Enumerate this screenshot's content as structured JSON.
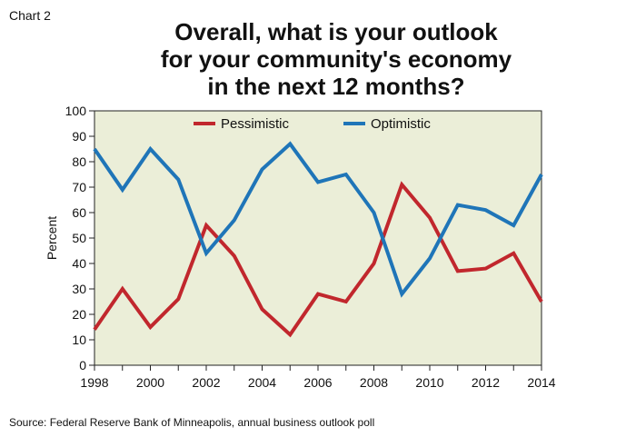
{
  "header": {
    "chart_number": "Chart 2",
    "title_line1": "Overall, what is your outlook",
    "title_line2": "for your community's economy",
    "title_line3": "in the next 12 months?"
  },
  "footer": {
    "source": "Source: Federal Reserve Bank of Minneapolis, annual business outlook poll"
  },
  "colors": {
    "plot_background": "#ebeed8",
    "pessimistic": "#c1272d",
    "optimistic": "#1f75b8"
  },
  "chart_data": {
    "type": "line",
    "title": "Overall, what is your outlook for your community's economy in the next 12 months?",
    "xlabel": "",
    "ylabel": "Percent",
    "x": [
      1998,
      1999,
      2000,
      2001,
      2002,
      2003,
      2004,
      2005,
      2006,
      2007,
      2008,
      2009,
      2010,
      2011,
      2012,
      2013,
      2014
    ],
    "xticks": [
      "1998",
      "2000",
      "2002",
      "2004",
      "2006",
      "2008",
      "2010",
      "2012",
      "2014"
    ],
    "yticks": [
      "0",
      "10",
      "20",
      "30",
      "40",
      "50",
      "60",
      "70",
      "80",
      "90",
      "100"
    ],
    "xlim": [
      1998,
      2014
    ],
    "ylim": [
      0,
      100
    ],
    "grid": false,
    "legend_position": "top",
    "series": [
      {
        "name": "Pessimistic",
        "values": [
          14,
          30,
          15,
          26,
          55,
          43,
          22,
          12,
          28,
          25,
          40,
          71,
          58,
          37,
          38,
          44,
          25
        ]
      },
      {
        "name": "Optimistic",
        "values": [
          85,
          69,
          85,
          73,
          44,
          57,
          77,
          87,
          72,
          75,
          60,
          28,
          42,
          63,
          61,
          55,
          75
        ]
      }
    ]
  }
}
